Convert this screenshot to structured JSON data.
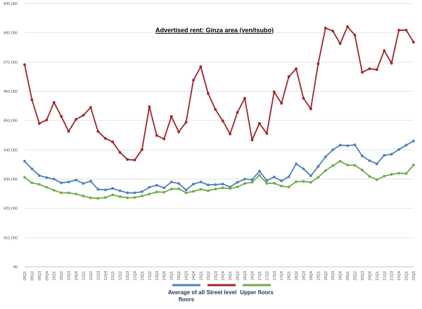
{
  "chart_data": {
    "type": "line",
    "title": "Advertised rent: Ginza area (yen/tsubo)",
    "categories": [
      "09Q1",
      "09Q2",
      "09Q3",
      "09Q4",
      "10Q1",
      "10Q2",
      "10Q3",
      "10Q4",
      "11Q1",
      "11Q2",
      "11Q3",
      "11Q4",
      "12Q1",
      "12Q2",
      "12Q3",
      "12Q4",
      "13Q1",
      "13Q2",
      "13Q3",
      "13Q4",
      "14Q1",
      "14Q2",
      "14Q3",
      "14Q4",
      "15Q1",
      "15Q2",
      "15Q3",
      "15Q4",
      "16Q1",
      "16Q2",
      "16Q3",
      "16Q4",
      "17Q1",
      "17Q2",
      "17Q3",
      "17Q4",
      "18Q1",
      "18Q2",
      "18Q3",
      "18Q4",
      "19Q1",
      "19Q2",
      "19Q3",
      "19Q4",
      "20Q1",
      "20Q2",
      "20Q3",
      "20Q4",
      "21Q1",
      "21Q2",
      "21Q3",
      "21Q4",
      "22Q1",
      "22Q2"
    ],
    "series": [
      {
        "name": "Average of all floors",
        "color": "#4f81bd",
        "values": [
          36100,
          33500,
          31200,
          30500,
          30000,
          28700,
          29000,
          29700,
          28500,
          29300,
          26500,
          26300,
          26800,
          26000,
          25300,
          25300,
          25700,
          27200,
          27900,
          27000,
          29000,
          28500,
          26300,
          28300,
          29000,
          28000,
          28100,
          28300,
          27300,
          28900,
          30000,
          29800,
          32700,
          29500,
          30700,
          29400,
          30800,
          35200,
          33500,
          31100,
          34300,
          37600,
          40000,
          41600,
          41400,
          41700,
          37900,
          36300,
          35200,
          38100,
          38500,
          40100,
          41600,
          43000
        ]
      },
      {
        "name": "Street level",
        "color": "#a0262a",
        "values": [
          69100,
          57100,
          49000,
          50200,
          56200,
          51400,
          46300,
          50400,
          51800,
          54500,
          46300,
          43900,
          42700,
          39100,
          36700,
          36500,
          40100,
          54700,
          44900,
          43700,
          51400,
          46100,
          49400,
          63800,
          68400,
          59300,
          53800,
          49900,
          45400,
          52800,
          57600,
          43400,
          49000,
          45600,
          59800,
          55900,
          65000,
          67700,
          57600,
          54000,
          69400,
          81600,
          80600,
          76300,
          82100,
          79200,
          66500,
          67700,
          67400,
          73900,
          69600,
          80900,
          80900,
          76800
        ]
      },
      {
        "name": "Upper floors",
        "color": "#70ad47",
        "values": [
          30600,
          28700,
          28200,
          27200,
          26200,
          25300,
          25300,
          24900,
          24200,
          23600,
          23400,
          23700,
          24600,
          24000,
          23600,
          23700,
          24200,
          24900,
          25600,
          25500,
          26600,
          26700,
          25300,
          25800,
          26500,
          26000,
          26600,
          27000,
          26800,
          27300,
          28500,
          28900,
          31300,
          28500,
          28600,
          27600,
          27300,
          29100,
          29200,
          28900,
          30600,
          32900,
          34600,
          36100,
          34800,
          34700,
          33100,
          30900,
          29800,
          31000,
          31600,
          32000,
          31900,
          34800
        ]
      }
    ],
    "ylim": [
      0,
      90000
    ],
    "yticks": [
      {
        "value": 0,
        "label": "¥0"
      },
      {
        "value": 10000,
        "label": "¥10,000"
      },
      {
        "value": 20000,
        "label": "¥20,000"
      },
      {
        "value": 30000,
        "label": "¥30,000"
      },
      {
        "value": 40000,
        "label": "¥40,000"
      },
      {
        "value": 50000,
        "label": "¥50,000"
      },
      {
        "value": 60000,
        "label": "¥60,000"
      },
      {
        "value": 70000,
        "label": "¥70,000"
      },
      {
        "value": 80000,
        "label": "¥80,000"
      },
      {
        "value": 90000,
        "label": "¥90,000"
      }
    ],
    "grid": true
  }
}
